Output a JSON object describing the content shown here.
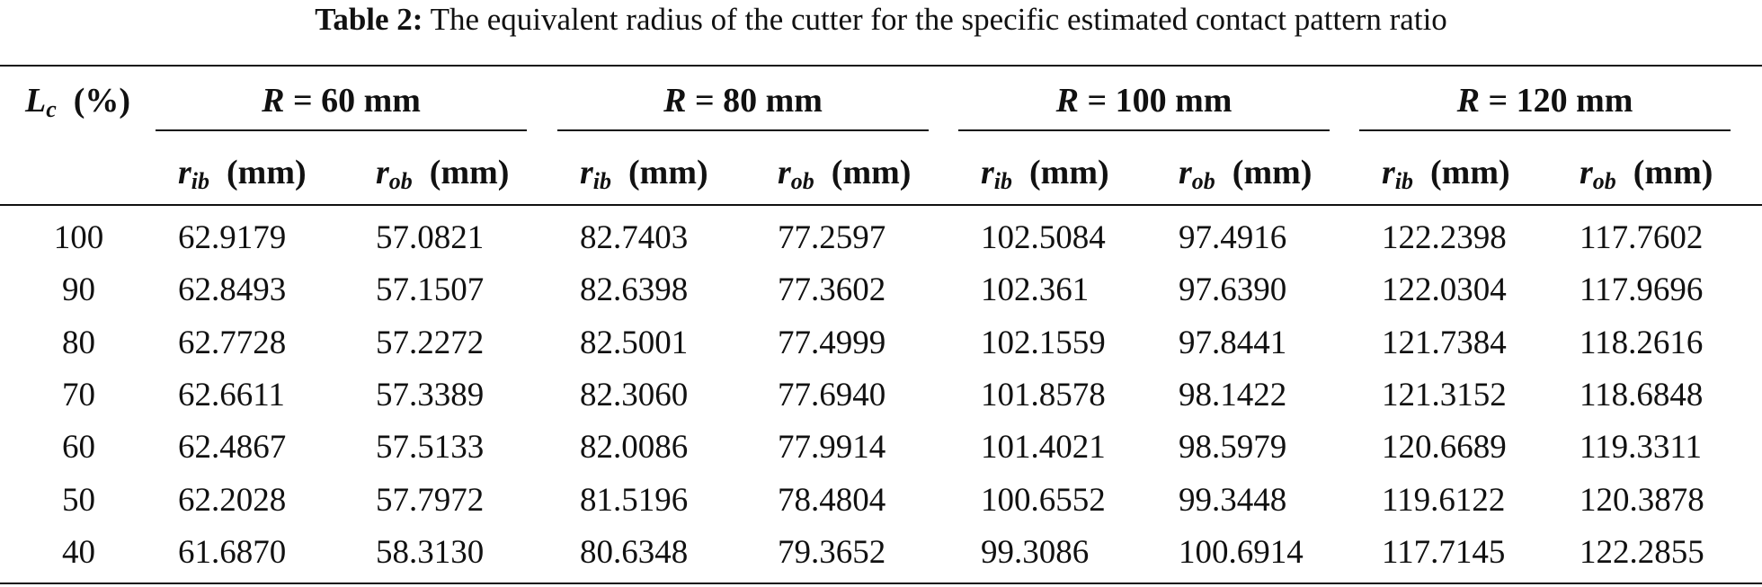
{
  "caption": {
    "label": "Table 2:",
    "text": "The equivalent radius of the cutter for the specific estimated contact pattern ratio"
  },
  "header": {
    "first_col": {
      "symbol": "L",
      "subscript": "c",
      "unit": "(%)"
    },
    "groups": [
      {
        "symbol": "R",
        "text": " = 60 mm"
      },
      {
        "symbol": "R",
        "text": " = 80 mm"
      },
      {
        "symbol": "R",
        "text": " = 100 mm"
      },
      {
        "symbol": "R",
        "text": " = 120 mm"
      }
    ],
    "sub": {
      "rib": {
        "symbol": "r",
        "subscript": "ib",
        "unit": "(mm)"
      },
      "rob": {
        "symbol": "r",
        "subscript": "ob",
        "unit": "(mm)"
      }
    }
  },
  "rows": [
    [
      "100",
      "62.9179",
      "57.0821",
      "82.7403",
      "77.2597",
      "102.5084",
      "97.4916",
      "122.2398",
      "117.7602"
    ],
    [
      "90",
      "62.8493",
      "57.1507",
      "82.6398",
      "77.3602",
      "102.361",
      "97.6390",
      "122.0304",
      "117.9696"
    ],
    [
      "80",
      "62.7728",
      "57.2272",
      "82.5001",
      "77.4999",
      "102.1559",
      "97.8441",
      "121.7384",
      "118.2616"
    ],
    [
      "70",
      "62.6611",
      "57.3389",
      "82.3060",
      "77.6940",
      "101.8578",
      "98.1422",
      "121.3152",
      "118.6848"
    ],
    [
      "60",
      "62.4867",
      "57.5133",
      "82.0086",
      "77.9914",
      "101.4021",
      "98.5979",
      "120.6689",
      "119.3311"
    ],
    [
      "50",
      "62.2028",
      "57.7972",
      "81.5196",
      "78.4804",
      "100.6552",
      "99.3448",
      "119.6122",
      "120.3878"
    ],
    [
      "40",
      "61.6870",
      "58.3130",
      "80.6348",
      "79.3652",
      "99.3086",
      "100.6914",
      "117.7145",
      "122.2855"
    ]
  ]
}
